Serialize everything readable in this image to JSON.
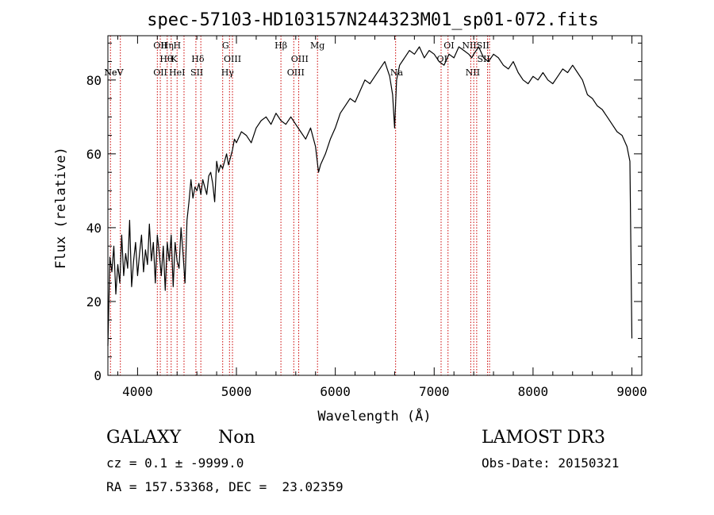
{
  "chart_data": {
    "type": "line",
    "title": "spec-57103-HD103157N244323M01_sp01-072.fits",
    "xlabel": "Wavelength (Å)",
    "ylabel": "Flux (relative)",
    "xlim": [
      3700,
      9100
    ],
    "ylim": [
      0,
      92
    ],
    "xticks": [
      4000,
      5000,
      6000,
      7000,
      8000,
      9000
    ],
    "yticks": [
      0,
      20,
      40,
      60,
      80
    ],
    "grid": false,
    "line_color": "#000000",
    "marker_color": "#cc0000",
    "spectrum": {
      "x": [
        3700,
        3720,
        3740,
        3760,
        3780,
        3800,
        3820,
        3840,
        3860,
        3880,
        3900,
        3920,
        3940,
        3960,
        3980,
        4000,
        4020,
        4040,
        4060,
        4080,
        4100,
        4120,
        4140,
        4160,
        4180,
        4200,
        4220,
        4240,
        4260,
        4280,
        4300,
        4320,
        4340,
        4360,
        4380,
        4400,
        4420,
        4440,
        4460,
        4480,
        4500,
        4520,
        4540,
        4560,
        4580,
        4600,
        4620,
        4640,
        4660,
        4680,
        4700,
        4720,
        4740,
        4760,
        4780,
        4800,
        4820,
        4840,
        4860,
        4880,
        4900,
        4920,
        4940,
        4960,
        4980,
        5000,
        5050,
        5100,
        5150,
        5200,
        5250,
        5300,
        5350,
        5400,
        5450,
        5500,
        5550,
        5600,
        5650,
        5700,
        5750,
        5800,
        5830,
        5850,
        5900,
        5950,
        6000,
        6050,
        6100,
        6150,
        6200,
        6250,
        6300,
        6350,
        6400,
        6450,
        6500,
        6550,
        6580,
        6600,
        6620,
        6650,
        6700,
        6750,
        6800,
        6850,
        6900,
        6950,
        7000,
        7050,
        7100,
        7150,
        7200,
        7250,
        7300,
        7350,
        7380,
        7400,
        7450,
        7500,
        7550,
        7600,
        7650,
        7700,
        7750,
        7800,
        7850,
        7900,
        7950,
        8000,
        8050,
        8100,
        8150,
        8200,
        8250,
        8300,
        8350,
        8400,
        8450,
        8500,
        8550,
        8600,
        8650,
        8700,
        8750,
        8800,
        8850,
        8900,
        8950,
        8980,
        9000
      ],
      "y": [
        8,
        32,
        28,
        35,
        22,
        30,
        25,
        38,
        27,
        33,
        29,
        42,
        24,
        31,
        36,
        27,
        33,
        38,
        28,
        34,
        30,
        41,
        31,
        36,
        25,
        38,
        33,
        27,
        35,
        23,
        36,
        31,
        38,
        24,
        36,
        31,
        29,
        40,
        33,
        25,
        42,
        47,
        53,
        48,
        51,
        50,
        52,
        49,
        53,
        51,
        49,
        54,
        55,
        52,
        47,
        58,
        55,
        57,
        56,
        58,
        60,
        57,
        59,
        61,
        64,
        63,
        66,
        65,
        63,
        67,
        69,
        70,
        68,
        71,
        69,
        68,
        70,
        68,
        66,
        64,
        67,
        62,
        55,
        57,
        60,
        64,
        67,
        71,
        73,
        75,
        74,
        77,
        80,
        79,
        81,
        83,
        85,
        81,
        76,
        67,
        80,
        84,
        86,
        88,
        87,
        89,
        86,
        88,
        87,
        85,
        84,
        87,
        86,
        89,
        88,
        87,
        86,
        87,
        89,
        86,
        85,
        87,
        86,
        84,
        83,
        85,
        82,
        80,
        79,
        81,
        80,
        82,
        80,
        79,
        81,
        83,
        82,
        84,
        82,
        80,
        76,
        75,
        73,
        72,
        70,
        68,
        66,
        65,
        62,
        58,
        10
      ]
    },
    "lines_top": [
      {
        "label": "NeV",
        "x": 3760,
        "row": 2
      },
      {
        "label": "OII",
        "x": 4230,
        "row": 0
      },
      {
        "label": "Hη",
        "x": 4300,
        "row": 0
      },
      {
        "label": "H",
        "x": 4400,
        "row": 0
      },
      {
        "label": "Hθ",
        "x": 4290,
        "row": 1
      },
      {
        "label": "K",
        "x": 4370,
        "row": 1
      },
      {
        "label": "Hδ",
        "x": 4610,
        "row": 1
      },
      {
        "label": "G",
        "x": 4890,
        "row": 0
      },
      {
        "label": "OIII",
        "x": 4960,
        "row": 1
      },
      {
        "label": "Hβ",
        "x": 5450,
        "row": 0
      },
      {
        "label": "OIII",
        "x": 5640,
        "row": 1
      },
      {
        "label": "Mg",
        "x": 5820,
        "row": 0
      },
      {
        "label": "OI",
        "x": 7150,
        "row": 0
      },
      {
        "label": "NIISII",
        "x": 7420,
        "row": 0
      },
      {
        "label": "OI",
        "x": 7080,
        "row": 1
      },
      {
        "label": "SII",
        "x": 7500,
        "row": 1
      }
    ],
    "lines_bottom": [
      {
        "label": "NeV",
        "x": 3760,
        "row": 0
      },
      {
        "label": "OII",
        "x": 4230,
        "row": 0
      },
      {
        "label": "HeI",
        "x": 4400,
        "row": 0
      },
      {
        "label": "SII",
        "x": 4600,
        "row": 0
      },
      {
        "label": "Hγ",
        "x": 4910,
        "row": 0
      },
      {
        "label": "OIII",
        "x": 5600,
        "row": 0
      },
      {
        "label": "Na",
        "x": 6620,
        "row": 0
      },
      {
        "label": "NII",
        "x": 7390,
        "row": 0
      }
    ],
    "marker_lines": [
      3726,
      3826,
      4200,
      4230,
      4300,
      4340,
      4400,
      4470,
      4590,
      4640,
      4861,
      4930,
      4960,
      5450,
      5580,
      5630,
      5820,
      6610,
      7070,
      7140,
      7370,
      7400,
      7430,
      7540,
      7560
    ]
  },
  "info": {
    "class": "GALAXY",
    "subclass": "Non",
    "survey": "LAMOST DR3",
    "cz": "cz = 0.1 ± -9999.0",
    "obs_date": "Obs-Date: 20150321",
    "coords": "RA = 157.53368, DEC =  23.02359"
  }
}
